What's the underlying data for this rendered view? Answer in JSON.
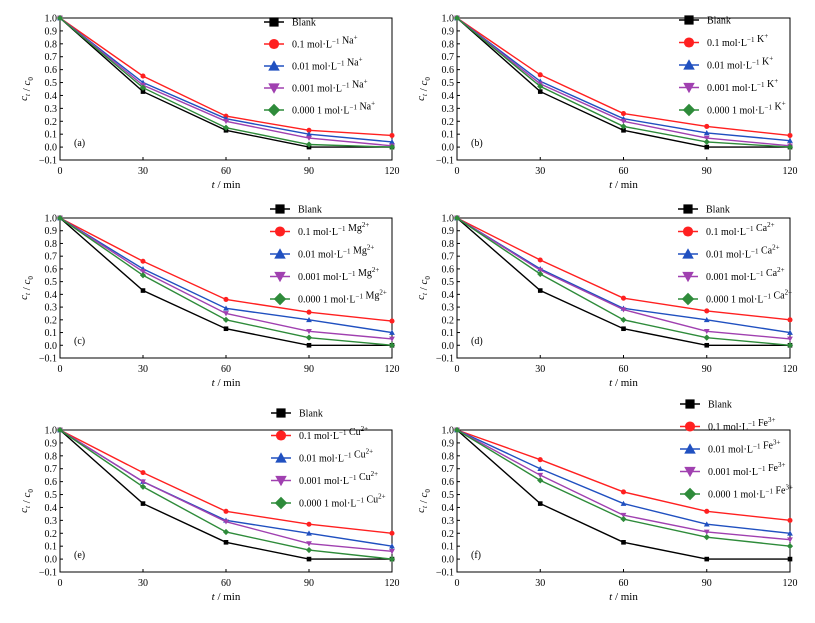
{
  "chart_data": [
    {
      "type": "line",
      "panel_label": "(a)",
      "xlabel": "t / min",
      "ylabel": "c_t / c_0",
      "x": [
        0,
        30,
        60,
        90,
        120
      ],
      "xlim": [
        0,
        120
      ],
      "ylim": [
        -0.1,
        1.0
      ],
      "xticks": [
        "0",
        "30",
        "60",
        "90",
        "120"
      ],
      "yticks": [
        "-0.1",
        "0.0",
        "0.1",
        "0.2",
        "0.3",
        "0.4",
        "0.5",
        "0.6",
        "0.7",
        "0.8",
        "0.9",
        "1.0"
      ],
      "legend_position": "top-right",
      "series": [
        {
          "name": "Blank",
          "values": [
            1.0,
            0.43,
            0.13,
            0.0,
            0.0
          ],
          "color": "#000000",
          "marker": "square"
        },
        {
          "name": "0.1 mol·L⁻¹ Na⁺",
          "values": [
            1.0,
            0.55,
            0.24,
            0.13,
            0.09
          ],
          "color": "#ff2020",
          "marker": "circle"
        },
        {
          "name": "0.01 mol·L⁻¹ Na⁺",
          "values": [
            1.0,
            0.5,
            0.22,
            0.1,
            0.04
          ],
          "color": "#2050c0",
          "marker": "triangle-up"
        },
        {
          "name": "0.001 mol·L⁻¹ Na⁺",
          "values": [
            1.0,
            0.48,
            0.2,
            0.07,
            0.01
          ],
          "color": "#a040b0",
          "marker": "triangle-down"
        },
        {
          "name": "0.000 1 mol·L⁻¹ Na⁺",
          "values": [
            1.0,
            0.46,
            0.15,
            0.02,
            0.0
          ],
          "color": "#2e8b3a",
          "marker": "diamond"
        }
      ]
    },
    {
      "type": "line",
      "panel_label": "(b)",
      "xlabel": "t / min",
      "ylabel": "c_t / c_0",
      "x": [
        0,
        30,
        60,
        90,
        120
      ],
      "xlim": [
        0,
        120
      ],
      "ylim": [
        -0.1,
        1.0
      ],
      "xticks": [
        "0",
        "30",
        "60",
        "90",
        "120"
      ],
      "yticks": [
        "-0.1",
        "0.0",
        "0.1",
        "0.2",
        "0.3",
        "0.4",
        "0.5",
        "0.6",
        "0.7",
        "0.8",
        "0.9",
        "1.0"
      ],
      "legend_position": "top-right",
      "series": [
        {
          "name": "Blank",
          "values": [
            1.0,
            0.43,
            0.13,
            0.0,
            0.0
          ],
          "color": "#000000",
          "marker": "square"
        },
        {
          "name": "0.1 mol·L⁻¹ K⁺",
          "values": [
            1.0,
            0.56,
            0.26,
            0.16,
            0.09
          ],
          "color": "#ff2020",
          "marker": "circle"
        },
        {
          "name": "0.01 mol·L⁻¹ K⁺",
          "values": [
            1.0,
            0.51,
            0.22,
            0.11,
            0.05
          ],
          "color": "#2050c0",
          "marker": "triangle-up"
        },
        {
          "name": "0.001 mol·L⁻¹ K⁺",
          "values": [
            1.0,
            0.49,
            0.2,
            0.07,
            0.01
          ],
          "color": "#a040b0",
          "marker": "triangle-down"
        },
        {
          "name": "0.000 1 mol·L⁻¹ K⁺",
          "values": [
            1.0,
            0.47,
            0.16,
            0.04,
            0.0
          ],
          "color": "#2e8b3a",
          "marker": "diamond"
        }
      ]
    },
    {
      "type": "line",
      "panel_label": "(c)",
      "xlabel": "t / min",
      "ylabel": "c_t / c_0",
      "x": [
        0,
        30,
        60,
        90,
        120
      ],
      "xlim": [
        0,
        120
      ],
      "ylim": [
        -0.1,
        1.0
      ],
      "xticks": [
        "0",
        "30",
        "60",
        "90",
        "120"
      ],
      "yticks": [
        "-0.1",
        "0.0",
        "0.1",
        "0.2",
        "0.3",
        "0.4",
        "0.5",
        "0.6",
        "0.7",
        "0.8",
        "0.9",
        "1.0"
      ],
      "legend_position": "top-right",
      "series": [
        {
          "name": "Blank",
          "values": [
            1.0,
            0.43,
            0.13,
            0.0,
            0.0
          ],
          "color": "#000000",
          "marker": "square"
        },
        {
          "name": "0.1 mol·L⁻¹ Mg²⁺",
          "values": [
            1.0,
            0.66,
            0.36,
            0.26,
            0.19
          ],
          "color": "#ff2020",
          "marker": "circle"
        },
        {
          "name": "0.01 mol·L⁻¹ Mg²⁺",
          "values": [
            1.0,
            0.6,
            0.29,
            0.2,
            0.1
          ],
          "color": "#2050c0",
          "marker": "triangle-up"
        },
        {
          "name": "0.001 mol·L⁻¹ Mg²⁺",
          "values": [
            1.0,
            0.58,
            0.25,
            0.11,
            0.05
          ],
          "color": "#a040b0",
          "marker": "triangle-down"
        },
        {
          "name": "0.000 1 mol·L⁻¹ Mg²⁺",
          "values": [
            1.0,
            0.55,
            0.2,
            0.06,
            0.0
          ],
          "color": "#2e8b3a",
          "marker": "diamond"
        }
      ]
    },
    {
      "type": "line",
      "panel_label": "(d)",
      "xlabel": "t / min",
      "ylabel": "c_t / c_0",
      "x": [
        0,
        30,
        60,
        90,
        120
      ],
      "xlim": [
        0,
        120
      ],
      "ylim": [
        -0.1,
        1.0
      ],
      "xticks": [
        "0",
        "30",
        "60",
        "90",
        "120"
      ],
      "yticks": [
        "-0.1",
        "0.0",
        "0.1",
        "0.2",
        "0.3",
        "0.4",
        "0.5",
        "0.6",
        "0.7",
        "0.8",
        "0.9",
        "1.0"
      ],
      "legend_position": "top-right",
      "series": [
        {
          "name": "Blank",
          "values": [
            1.0,
            0.43,
            0.13,
            0.0,
            0.0
          ],
          "color": "#000000",
          "marker": "square"
        },
        {
          "name": "0.1 mol·L⁻¹ Ca²⁺",
          "values": [
            1.0,
            0.67,
            0.37,
            0.27,
            0.2
          ],
          "color": "#ff2020",
          "marker": "circle"
        },
        {
          "name": "0.01 mol·L⁻¹ Ca²⁺",
          "values": [
            1.0,
            0.6,
            0.29,
            0.2,
            0.1
          ],
          "color": "#2050c0",
          "marker": "triangle-up"
        },
        {
          "name": "0.001 mol·L⁻¹ Ca²⁺",
          "values": [
            1.0,
            0.59,
            0.28,
            0.11,
            0.05
          ],
          "color": "#a040b0",
          "marker": "triangle-down"
        },
        {
          "name": "0.000 1 mol·L⁻¹ Ca²⁺",
          "values": [
            1.0,
            0.56,
            0.2,
            0.06,
            0.0
          ],
          "color": "#2e8b3a",
          "marker": "diamond"
        }
      ]
    },
    {
      "type": "line",
      "panel_label": "(e)",
      "xlabel": "t / min",
      "ylabel": "c_t / c_0",
      "x": [
        0,
        30,
        60,
        90,
        120
      ],
      "xlim": [
        0,
        120
      ],
      "ylim": [
        -0.1,
        1.0
      ],
      "xticks": [
        "0",
        "30",
        "60",
        "90",
        "120"
      ],
      "yticks": [
        "-0.1",
        "0.0",
        "0.1",
        "0.2",
        "0.3",
        "0.4",
        "0.5",
        "0.6",
        "0.7",
        "0.8",
        "0.9",
        "1.0"
      ],
      "legend_position": "top-right",
      "series": [
        {
          "name": "Blank",
          "values": [
            1.0,
            0.43,
            0.13,
            0.0,
            0.0
          ],
          "color": "#000000",
          "marker": "square"
        },
        {
          "name": "0.1 mol·L⁻¹ Cu²⁺",
          "values": [
            1.0,
            0.67,
            0.37,
            0.27,
            0.2
          ],
          "color": "#ff2020",
          "marker": "circle"
        },
        {
          "name": "0.01 mol·L⁻¹ Cu²⁺",
          "values": [
            1.0,
            0.6,
            0.3,
            0.2,
            0.1
          ],
          "color": "#2050c0",
          "marker": "triangle-up"
        },
        {
          "name": "0.001 mol·L⁻¹ Cu²⁺",
          "values": [
            1.0,
            0.6,
            0.29,
            0.12,
            0.06
          ],
          "color": "#a040b0",
          "marker": "triangle-down"
        },
        {
          "name": "0.000 1 mol·L⁻¹ Cu²⁺",
          "values": [
            1.0,
            0.56,
            0.21,
            0.07,
            0.0
          ],
          "color": "#2e8b3a",
          "marker": "diamond"
        }
      ]
    },
    {
      "type": "line",
      "panel_label": "(f)",
      "xlabel": "t / min",
      "ylabel": "c_t / c_0",
      "x": [
        0,
        30,
        60,
        90,
        120
      ],
      "xlim": [
        0,
        120
      ],
      "ylim": [
        -0.1,
        1.0
      ],
      "xticks": [
        "0",
        "30",
        "60",
        "90",
        "120"
      ],
      "yticks": [
        "-0.1",
        "0.0",
        "0.1",
        "0.2",
        "0.3",
        "0.4",
        "0.5",
        "0.6",
        "0.7",
        "0.8",
        "0.9",
        "1.0"
      ],
      "legend_position": "top-right",
      "series": [
        {
          "name": "Blank",
          "values": [
            1.0,
            0.43,
            0.13,
            0.0,
            0.0
          ],
          "color": "#000000",
          "marker": "square"
        },
        {
          "name": "0.1 mol·L⁻¹ Fe³⁺",
          "values": [
            1.0,
            0.77,
            0.52,
            0.37,
            0.3
          ],
          "color": "#ff2020",
          "marker": "circle"
        },
        {
          "name": "0.01 mol·L⁻¹ Fe³⁺",
          "values": [
            1.0,
            0.7,
            0.43,
            0.27,
            0.2
          ],
          "color": "#2050c0",
          "marker": "triangle-up"
        },
        {
          "name": "0.001 mol·L⁻¹ Fe³⁺",
          "values": [
            1.0,
            0.65,
            0.34,
            0.21,
            0.15
          ],
          "color": "#a040b0",
          "marker": "triangle-down"
        },
        {
          "name": "0.000 1 mol·L⁻¹ Fe³⁺",
          "values": [
            1.0,
            0.61,
            0.31,
            0.17,
            0.1
          ],
          "color": "#2e8b3a",
          "marker": "diamond"
        }
      ]
    }
  ]
}
